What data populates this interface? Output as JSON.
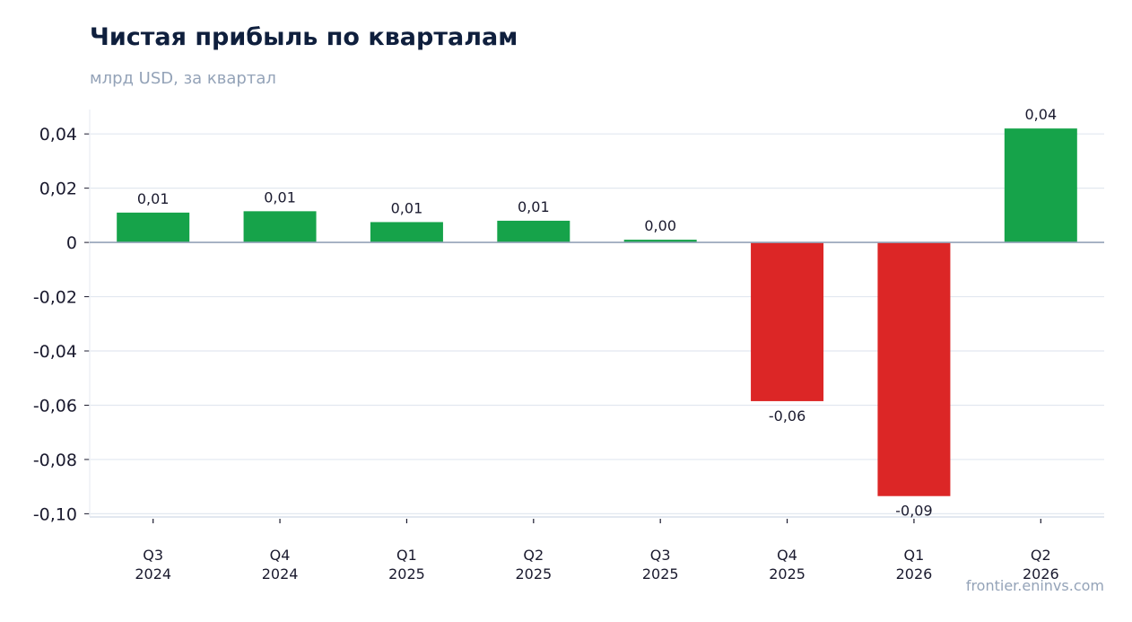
{
  "chart_data": {
    "type": "bar",
    "title": "Чистая прибыль по кварталам",
    "subtitle": "млрд USD, за квартал",
    "source": "frontier.eninvs.com",
    "categories": [
      [
        "Q3",
        "2024"
      ],
      [
        "Q4",
        "2024"
      ],
      [
        "Q1",
        "2025"
      ],
      [
        "Q2",
        "2025"
      ],
      [
        "Q3",
        "2025"
      ],
      [
        "Q4",
        "2025"
      ],
      [
        "Q1",
        "2026"
      ],
      [
        "Q2",
        "2026"
      ]
    ],
    "values": [
      0.011,
      0.0115,
      0.0075,
      0.008,
      0.001,
      -0.0585,
      -0.0935,
      0.042
    ],
    "data_labels": [
      "0,01",
      "0,01",
      "0,01",
      "0,01",
      "0,00",
      "-0,06",
      "-0,09",
      "0,04"
    ],
    "ylim": [
      -0.1,
      0.05
    ],
    "yticks": [
      0.04,
      0.02,
      0,
      -0.02,
      -0.04,
      -0.06,
      -0.08,
      -0.1
    ],
    "ytick_labels": [
      "0,04",
      "0,02",
      "0",
      "-0,02",
      "-0,04",
      "-0,06",
      "-0,08",
      "-0,10"
    ],
    "grid": true,
    "colors": {
      "positive": "#16a34a",
      "negative": "#dc2626",
      "grid": "#e2e8f0",
      "zero_line": "#94a3b8"
    }
  }
}
